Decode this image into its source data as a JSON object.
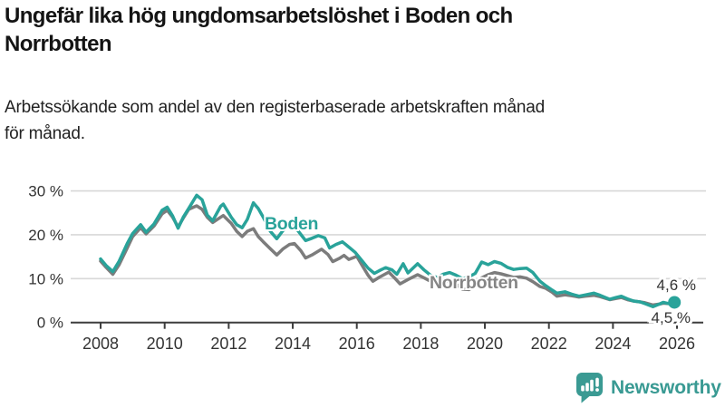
{
  "title_lines": [
    "Ungefär lika hög ungdomsarbetslöshet i Boden och",
    "Norrbotten"
  ],
  "subtitle_lines": [
    "Arbetssökande som andel av den registerbaserade arbetskraften månad",
    "för månad."
  ],
  "branding": {
    "name": "Newsworthy",
    "icon": "newsworthy-chart-bubble-icon",
    "color": "#399a93"
  },
  "colors": {
    "boden_teal": "#29a39a",
    "norrbotten_gray": "#7c7c7c",
    "norrbotten_label": "#858585",
    "grid": "#d8d8d8",
    "axis": "#3d3d3d",
    "tick_text": "#333333",
    "title_text": "#141414"
  },
  "chart_data": {
    "type": "line",
    "title": "Ungefär lika hög ungdomsarbetslöshet i Boden och Norrbotten",
    "subtitle": "Arbetssökande som andel av den registerbaserade arbetskraften månad för månad.",
    "xlabel": "",
    "ylabel": "",
    "xlim": [
      2007.0,
      2026.95
    ],
    "ylim": [
      0,
      30
    ],
    "grid": "horizontal",
    "legend": "inline-labels",
    "x_axis": {
      "ticks": [
        2008,
        2010,
        2012,
        2014,
        2016,
        2018,
        2020,
        2022,
        2024,
        2026
      ]
    },
    "y_axis": {
      "ticks": [
        {
          "value": 0,
          "label": "0 %"
        },
        {
          "value": 10,
          "label": "10 %"
        },
        {
          "value": 20,
          "label": "20 %"
        },
        {
          "value": 30,
          "label": "30 %"
        }
      ]
    },
    "series": [
      {
        "name": "Norrbotten",
        "color": "#7c7c7c",
        "label_color": "#858585",
        "end_label": "4,5 %",
        "end_dot": false,
        "points": [
          [
            2008.0,
            14.0
          ],
          [
            2008.17,
            12.6
          ],
          [
            2008.38,
            11.0
          ],
          [
            2008.58,
            13.2
          ],
          [
            2008.83,
            17.0
          ],
          [
            2009.0,
            19.6
          ],
          [
            2009.25,
            21.6
          ],
          [
            2009.42,
            20.2
          ],
          [
            2009.67,
            22.0
          ],
          [
            2009.92,
            24.8
          ],
          [
            2010.08,
            25.6
          ],
          [
            2010.25,
            24.0
          ],
          [
            2010.42,
            21.8
          ],
          [
            2010.58,
            23.8
          ],
          [
            2010.75,
            25.8
          ],
          [
            2011.0,
            26.6
          ],
          [
            2011.17,
            25.8
          ],
          [
            2011.33,
            24.0
          ],
          [
            2011.5,
            22.8
          ],
          [
            2011.75,
            24.0
          ],
          [
            2011.83,
            24.4
          ],
          [
            2012.08,
            22.6
          ],
          [
            2012.25,
            20.8
          ],
          [
            2012.42,
            19.6
          ],
          [
            2012.58,
            20.8
          ],
          [
            2012.77,
            21.4
          ],
          [
            2012.92,
            19.6
          ],
          [
            2013.08,
            18.4
          ],
          [
            2013.3,
            16.8
          ],
          [
            2013.5,
            15.4
          ],
          [
            2013.7,
            16.8
          ],
          [
            2013.9,
            17.8
          ],
          [
            2014.05,
            18.0
          ],
          [
            2014.25,
            16.4
          ],
          [
            2014.4,
            14.7
          ],
          [
            2014.6,
            15.4
          ],
          [
            2014.9,
            16.7
          ],
          [
            2015.1,
            15.5
          ],
          [
            2015.25,
            13.9
          ],
          [
            2015.45,
            14.6
          ],
          [
            2015.6,
            15.3
          ],
          [
            2015.75,
            14.4
          ],
          [
            2016.0,
            15.1
          ],
          [
            2016.2,
            12.6
          ],
          [
            2016.35,
            10.8
          ],
          [
            2016.5,
            9.4
          ],
          [
            2016.7,
            10.3
          ],
          [
            2017.0,
            11.5
          ],
          [
            2017.2,
            10.0
          ],
          [
            2017.35,
            8.8
          ],
          [
            2017.6,
            9.8
          ],
          [
            2017.9,
            10.9
          ],
          [
            2018.1,
            10.2
          ],
          [
            2018.3,
            9.4
          ],
          [
            2018.5,
            8.7
          ],
          [
            2018.7,
            9.2
          ],
          [
            2018.9,
            9.6
          ],
          [
            2019.1,
            8.8
          ],
          [
            2019.3,
            7.6
          ],
          [
            2019.5,
            7.5
          ],
          [
            2019.7,
            8.4
          ],
          [
            2019.9,
            10.2
          ],
          [
            2020.1,
            10.9
          ],
          [
            2020.3,
            11.4
          ],
          [
            2020.5,
            11.1
          ],
          [
            2020.7,
            10.7
          ],
          [
            2020.9,
            10.3
          ],
          [
            2021.1,
            10.4
          ],
          [
            2021.3,
            10.1
          ],
          [
            2021.5,
            9.3
          ],
          [
            2021.72,
            8.2
          ],
          [
            2021.9,
            7.8
          ],
          [
            2022.1,
            6.9
          ],
          [
            2022.25,
            6.0
          ],
          [
            2022.5,
            6.3
          ],
          [
            2022.7,
            6.1
          ],
          [
            2022.94,
            5.8
          ],
          [
            2023.15,
            6.0
          ],
          [
            2023.4,
            6.2
          ],
          [
            2023.6,
            5.9
          ],
          [
            2023.9,
            5.2
          ],
          [
            2024.1,
            5.5
          ],
          [
            2024.26,
            5.7
          ],
          [
            2024.45,
            5.2
          ],
          [
            2024.64,
            4.9
          ],
          [
            2024.85,
            4.7
          ],
          [
            2025.0,
            4.5
          ],
          [
            2025.25,
            4.0
          ],
          [
            2025.45,
            4.2
          ],
          [
            2025.57,
            4.4
          ],
          [
            2025.75,
            4.3
          ],
          [
            2025.92,
            4.5
          ]
        ]
      },
      {
        "name": "Boden",
        "color": "#29a39a",
        "label_color": "#29a39a",
        "end_label": "4,6 %",
        "end_dot": true,
        "points": [
          [
            2008.0,
            14.5
          ],
          [
            2008.17,
            13.0
          ],
          [
            2008.38,
            11.6
          ],
          [
            2008.58,
            14.0
          ],
          [
            2008.83,
            18.0
          ],
          [
            2009.0,
            20.3
          ],
          [
            2009.25,
            22.3
          ],
          [
            2009.42,
            20.6
          ],
          [
            2009.67,
            22.5
          ],
          [
            2009.92,
            25.6
          ],
          [
            2010.08,
            26.3
          ],
          [
            2010.25,
            24.3
          ],
          [
            2010.42,
            21.5
          ],
          [
            2010.58,
            24.0
          ],
          [
            2010.75,
            26.0
          ],
          [
            2011.0,
            29.0
          ],
          [
            2011.17,
            28.0
          ],
          [
            2011.33,
            24.5
          ],
          [
            2011.5,
            23.2
          ],
          [
            2011.75,
            26.5
          ],
          [
            2011.83,
            27.0
          ],
          [
            2012.08,
            24.0
          ],
          [
            2012.25,
            22.3
          ],
          [
            2012.42,
            21.6
          ],
          [
            2012.58,
            23.5
          ],
          [
            2012.77,
            27.3
          ],
          [
            2012.92,
            26.0
          ],
          [
            2013.08,
            24.0
          ],
          [
            2013.3,
            20.8
          ],
          [
            2013.5,
            19.1
          ],
          [
            2013.7,
            21.0
          ],
          [
            2013.9,
            22.5
          ],
          [
            2014.05,
            22.0
          ],
          [
            2014.25,
            20.1
          ],
          [
            2014.4,
            18.7
          ],
          [
            2014.6,
            19.2
          ],
          [
            2014.8,
            19.8
          ],
          [
            2015.0,
            19.3
          ],
          [
            2015.15,
            17.0
          ],
          [
            2015.35,
            17.8
          ],
          [
            2015.55,
            18.4
          ],
          [
            2015.75,
            17.2
          ],
          [
            2015.95,
            16.0
          ],
          [
            2016.15,
            14.2
          ],
          [
            2016.35,
            12.4
          ],
          [
            2016.55,
            11.2
          ],
          [
            2016.75,
            12.0
          ],
          [
            2016.9,
            12.5
          ],
          [
            2017.1,
            12.0
          ],
          [
            2017.25,
            11.0
          ],
          [
            2017.45,
            13.4
          ],
          [
            2017.6,
            11.3
          ],
          [
            2017.9,
            13.4
          ],
          [
            2018.1,
            12.0
          ],
          [
            2018.3,
            10.8
          ],
          [
            2018.5,
            10.3
          ],
          [
            2018.7,
            11.0
          ],
          [
            2018.9,
            11.4
          ],
          [
            2019.1,
            10.8
          ],
          [
            2019.3,
            10.0
          ],
          [
            2019.5,
            10.4
          ],
          [
            2019.7,
            11.2
          ],
          [
            2019.9,
            13.8
          ],
          [
            2020.1,
            13.2
          ],
          [
            2020.3,
            13.9
          ],
          [
            2020.5,
            13.5
          ],
          [
            2020.7,
            12.6
          ],
          [
            2020.9,
            12.1
          ],
          [
            2021.1,
            12.3
          ],
          [
            2021.3,
            12.4
          ],
          [
            2021.5,
            11.4
          ],
          [
            2021.72,
            9.4
          ],
          [
            2021.9,
            8.4
          ],
          [
            2022.1,
            7.4
          ],
          [
            2022.25,
            6.7
          ],
          [
            2022.5,
            7.0
          ],
          [
            2022.7,
            6.5
          ],
          [
            2022.94,
            6.0
          ],
          [
            2023.15,
            6.3
          ],
          [
            2023.4,
            6.7
          ],
          [
            2023.6,
            6.2
          ],
          [
            2023.9,
            5.3
          ],
          [
            2024.1,
            5.7
          ],
          [
            2024.26,
            6.0
          ],
          [
            2024.45,
            5.4
          ],
          [
            2024.64,
            4.9
          ],
          [
            2024.85,
            4.7
          ],
          [
            2025.0,
            4.3
          ],
          [
            2025.25,
            3.6
          ],
          [
            2025.45,
            4.2
          ],
          [
            2025.57,
            4.6
          ],
          [
            2025.75,
            4.3
          ],
          [
            2025.92,
            4.6
          ]
        ]
      }
    ]
  }
}
